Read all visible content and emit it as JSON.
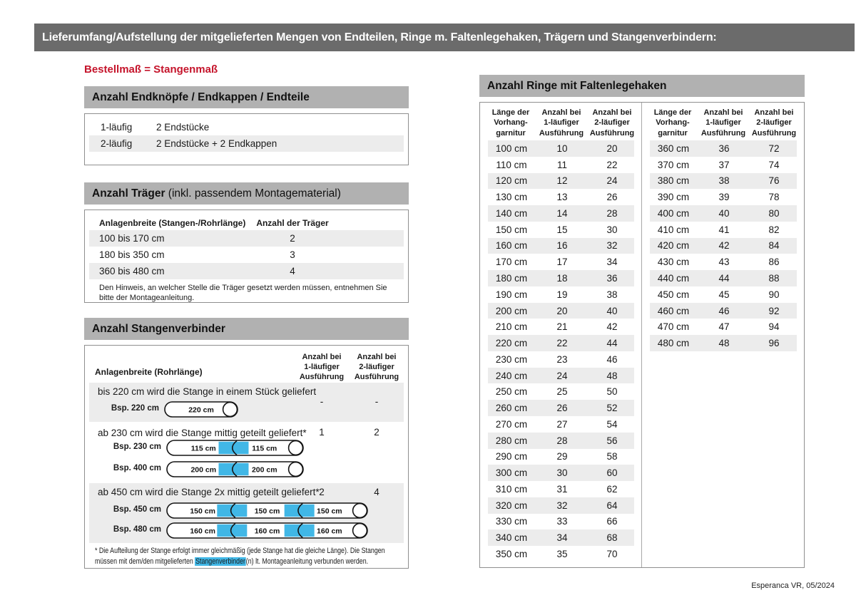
{
  "banner": {
    "title": "Lieferumfang/Aufstellung der mitgelieferten Mengen von Endteilen, Ringe m. Faltenlegehaken, Trägern und Stangenverbindern:"
  },
  "subtitle": "Bestellmaß = Stangenmaß",
  "colors": {
    "accent_red": "#c5142b",
    "highlight_blue": "#41b7e6",
    "banner_gray": "#6b6b6b",
    "section_header_gray": "#b1b1b1",
    "row_stripe_gray": "#ececec"
  },
  "endteile": {
    "header": "Anzahl Endknöpfe / Endkappen / Endteile",
    "rows": [
      {
        "label": "1-läufig",
        "value": "2 Endstücke"
      },
      {
        "label": "2-läufig",
        "value": "2 Endstücke + 2 Endkappen"
      }
    ]
  },
  "traeger": {
    "header_bold": "Anzahl Träger",
    "header_rest": " (inkl. passendem Montagematerial)",
    "col1": "Anlagenbreite (Stangen-/Rohrlänge)",
    "col2": "Anzahl der Träger",
    "rows": [
      {
        "range": "100 bis 170 cm",
        "count": "2"
      },
      {
        "range": "180 bis 350 cm",
        "count": "3"
      },
      {
        "range": "360 bis 480 cm",
        "count": "4"
      }
    ],
    "note": "Den Hinweis, an welcher Stelle die Träger gesetzt werden müssen, entnehmen Sie bitte der Montageanleitung."
  },
  "verbinder": {
    "header": "Anzahl Stangenverbinder",
    "col1": "Anlagenbreite (Rohrlänge)",
    "col2": "Anzahl bei\n1-läufiger\nAusführung",
    "col3": "Anzahl bei\n2-läufiger\nAusführung",
    "rows": [
      {
        "desc": "bis 220 cm wird die Stange in einem Stück geliefert",
        "count1": "-",
        "count2": "-",
        "examples": [
          {
            "label": "Bsp. 220 cm",
            "segments": [
              "220 cm"
            ]
          }
        ]
      },
      {
        "desc": "ab 230 cm wird die Stange mittig geteilt geliefert*",
        "count1": "1",
        "count2": "2",
        "examples": [
          {
            "label": "Bsp. 230 cm",
            "segments": [
              "115 cm",
              "115 cm"
            ]
          },
          {
            "label": "Bsp. 400 cm",
            "segments": [
              "200 cm",
              "200 cm"
            ]
          }
        ]
      },
      {
        "desc": "ab 450 cm wird die Stange 2x mittig geteilt geliefert*",
        "count1": "2",
        "count2": "4",
        "examples": [
          {
            "label": "Bsp. 450 cm",
            "segments": [
              "150 cm",
              "150 cm",
              "150 cm"
            ]
          },
          {
            "label": "Bsp. 480 cm",
            "segments": [
              "160 cm",
              "160 cm",
              "160 cm"
            ]
          }
        ]
      }
    ],
    "footnote_before": "* Die Aufteilung der Stange erfolgt immer gleichmäßig (jede Stange hat die gleiche Länge). Die Stangen müssen mit dem/den mitgelieferten ",
    "footnote_highlight": "Stangenverbinder",
    "footnote_after": "(n) lt. Montageanleitung verbunden werden."
  },
  "ringe": {
    "header": "Anzahl Ringe mit Faltenlegehaken",
    "col_len": "Länge der\nVorhang-\ngarnitur",
    "col_1l": "Anzahl bei\n1-läufiger\nAusführung",
    "col_2l": "Anzahl bei\n2-läufiger\nAusführung",
    "table1": [
      [
        "100 cm",
        "10",
        "20"
      ],
      [
        "110 cm",
        "11",
        "22"
      ],
      [
        "120 cm",
        "12",
        "24"
      ],
      [
        "130 cm",
        "13",
        "26"
      ],
      [
        "140 cm",
        "14",
        "28"
      ],
      [
        "150 cm",
        "15",
        "30"
      ],
      [
        "160 cm",
        "16",
        "32"
      ],
      [
        "170 cm",
        "17",
        "34"
      ],
      [
        "180 cm",
        "18",
        "36"
      ],
      [
        "190 cm",
        "19",
        "38"
      ],
      [
        "200 cm",
        "20",
        "40"
      ],
      [
        "210 cm",
        "21",
        "42"
      ],
      [
        "220 cm",
        "22",
        "44"
      ],
      [
        "230 cm",
        "23",
        "46"
      ],
      [
        "240 cm",
        "24",
        "48"
      ],
      [
        "250 cm",
        "25",
        "50"
      ],
      [
        "260 cm",
        "26",
        "52"
      ],
      [
        "270 cm",
        "27",
        "54"
      ],
      [
        "280 cm",
        "28",
        "56"
      ],
      [
        "290 cm",
        "29",
        "58"
      ],
      [
        "300 cm",
        "30",
        "60"
      ],
      [
        "310 cm",
        "31",
        "62"
      ],
      [
        "320 cm",
        "32",
        "64"
      ],
      [
        "330 cm",
        "33",
        "66"
      ],
      [
        "340 cm",
        "34",
        "68"
      ],
      [
        "350 cm",
        "35",
        "70"
      ]
    ],
    "table2": [
      [
        "360 cm",
        "36",
        "72"
      ],
      [
        "370 cm",
        "37",
        "74"
      ],
      [
        "380 cm",
        "38",
        "76"
      ],
      [
        "390 cm",
        "39",
        "78"
      ],
      [
        "400 cm",
        "40",
        "80"
      ],
      [
        "410 cm",
        "41",
        "82"
      ],
      [
        "420 cm",
        "42",
        "84"
      ],
      [
        "430 cm",
        "43",
        "86"
      ],
      [
        "440 cm",
        "44",
        "88"
      ],
      [
        "450 cm",
        "45",
        "90"
      ],
      [
        "460 cm",
        "46",
        "92"
      ],
      [
        "470 cm",
        "47",
        "94"
      ],
      [
        "480 cm",
        "48",
        "96"
      ]
    ]
  },
  "footer": "Esperanca VR, 05/2024"
}
